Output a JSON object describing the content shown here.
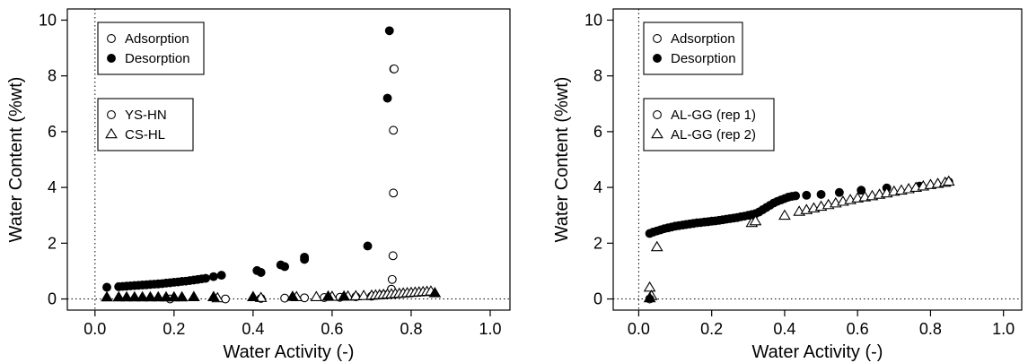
{
  "chart_data": [
    {
      "type": "scatter",
      "xlabel": "Water Activity (-)",
      "ylabel": "Water Content (%wt)",
      "xlim": [
        -0.07,
        1.05
      ],
      "ylim": [
        -0.4,
        10.4
      ],
      "xticks": [
        0.0,
        0.2,
        0.4,
        0.6,
        0.8,
        1.0
      ],
      "xtick_labels": [
        "0.0",
        "0.2",
        "0.4",
        "0.6",
        "0.8",
        "1.0"
      ],
      "yticks": [
        0,
        2,
        4,
        6,
        8,
        10
      ],
      "ytick_labels": [
        "0",
        "2",
        "4",
        "6",
        "8",
        "10"
      ],
      "reference_lines": {
        "x": 0,
        "y": 0,
        "style": "dotted"
      },
      "legend_fill": {
        "placement": "top-left",
        "entries": [
          {
            "label": "Adsorption",
            "marker": "circle",
            "filled": false
          },
          {
            "label": "Desorption",
            "marker": "circle",
            "filled": true
          }
        ]
      },
      "legend_shape": {
        "placement": "upper-left",
        "entries": [
          {
            "label": "YS-HN",
            "marker": "circle",
            "filled": false
          },
          {
            "label": "CS-HL",
            "marker": "triangle",
            "filled": false
          }
        ]
      },
      "series": [
        {
          "marker": "circle",
          "filled": false,
          "x": [
            0.19,
            0.33,
            0.42,
            0.48,
            0.53,
            0.58,
            0.62,
            0.66,
            0.7,
            0.73,
            0.745,
            0.75,
            0.752,
            0.754,
            0.755,
            0.755,
            0.756,
            0.757
          ],
          "y": [
            0.0,
            0.0,
            0.02,
            0.03,
            0.04,
            0.05,
            0.06,
            0.08,
            0.1,
            0.15,
            0.2,
            0.35,
            0.7,
            1.55,
            3.8,
            6.05,
            8.25,
            8.25
          ]
        },
        {
          "marker": "circle",
          "filled": true,
          "x": [
            0.03,
            0.06,
            0.07,
            0.08,
            0.09,
            0.1,
            0.11,
            0.12,
            0.13,
            0.14,
            0.15,
            0.16,
            0.17,
            0.18,
            0.19,
            0.2,
            0.21,
            0.22,
            0.23,
            0.24,
            0.25,
            0.26,
            0.27,
            0.28,
            0.3,
            0.32,
            0.41,
            0.42,
            0.47,
            0.48,
            0.53,
            0.53,
            0.69,
            0.74,
            0.745
          ],
          "y": [
            0.42,
            0.44,
            0.45,
            0.46,
            0.47,
            0.48,
            0.49,
            0.5,
            0.51,
            0.52,
            0.53,
            0.54,
            0.55,
            0.57,
            0.58,
            0.6,
            0.61,
            0.63,
            0.64,
            0.66,
            0.68,
            0.7,
            0.72,
            0.74,
            0.8,
            0.85,
            1.02,
            0.95,
            1.22,
            1.16,
            1.5,
            1.42,
            1.9,
            7.2,
            9.62
          ]
        },
        {
          "marker": "triangle",
          "filled": false,
          "x": [
            0.31,
            0.42,
            0.51,
            0.56,
            0.6,
            0.64,
            0.66,
            0.68,
            0.7,
            0.71,
            0.72,
            0.73,
            0.74,
            0.75,
            0.76,
            0.77,
            0.78,
            0.79,
            0.8,
            0.81,
            0.82,
            0.83,
            0.84,
            0.85
          ],
          "y": [
            0.02,
            0.03,
            0.06,
            0.06,
            0.07,
            0.08,
            0.09,
            0.1,
            0.11,
            0.12,
            0.13,
            0.14,
            0.15,
            0.16,
            0.17,
            0.18,
            0.19,
            0.2,
            0.21,
            0.22,
            0.23,
            0.24,
            0.25,
            0.26
          ]
        },
        {
          "marker": "triangle",
          "filled": true,
          "x": [
            0.03,
            0.06,
            0.08,
            0.1,
            0.12,
            0.14,
            0.16,
            0.18,
            0.2,
            0.22,
            0.25,
            0.3,
            0.4,
            0.5,
            0.59,
            0.63,
            0.86
          ],
          "y": [
            0.05,
            0.05,
            0.05,
            0.05,
            0.05,
            0.05,
            0.05,
            0.05,
            0.05,
            0.05,
            0.06,
            0.06,
            0.06,
            0.07,
            0.08,
            0.08,
            0.2
          ]
        }
      ]
    },
    {
      "type": "scatter",
      "xlabel": "Water Activity (-)",
      "ylabel": "Water Content (%wt)",
      "xlim": [
        -0.07,
        1.05
      ],
      "ylim": [
        -0.4,
        10.4
      ],
      "xticks": [
        0.0,
        0.2,
        0.4,
        0.6,
        0.8,
        1.0
      ],
      "xtick_labels": [
        "0.0",
        "0.2",
        "0.4",
        "0.6",
        "0.8",
        "1.0"
      ],
      "yticks": [
        0,
        2,
        4,
        6,
        8,
        10
      ],
      "ytick_labels": [
        "0",
        "2",
        "4",
        "6",
        "8",
        "10"
      ],
      "reference_lines": {
        "x": 0,
        "y": 0,
        "style": "dotted"
      },
      "legend_fill": {
        "placement": "top-left",
        "entries": [
          {
            "label": "Adsorption",
            "marker": "circle",
            "filled": false
          },
          {
            "label": "Desorption",
            "marker": "circle",
            "filled": true
          }
        ]
      },
      "legend_shape": {
        "placement": "upper-left",
        "entries": [
          {
            "label": "AL-GG (rep 1)",
            "marker": "circle",
            "filled": false
          },
          {
            "label": "AL-GG (rep 2)",
            "marker": "triangle",
            "filled": false
          }
        ]
      },
      "series": [
        {
          "marker": "circle",
          "filled": true,
          "x": [
            0.03,
            0.04,
            0.05,
            0.06,
            0.07,
            0.08,
            0.09,
            0.1,
            0.11,
            0.12,
            0.13,
            0.14,
            0.15,
            0.16,
            0.17,
            0.18,
            0.19,
            0.2,
            0.21,
            0.22,
            0.23,
            0.24,
            0.25,
            0.26,
            0.27,
            0.28,
            0.29,
            0.3,
            0.31,
            0.32,
            0.33,
            0.34,
            0.35,
            0.36,
            0.37,
            0.38,
            0.39,
            0.4,
            0.41,
            0.42,
            0.43,
            0.46,
            0.5,
            0.55,
            0.61,
            0.68,
            0.77,
            0.85
          ],
          "y": [
            2.35,
            2.4,
            2.44,
            2.48,
            2.52,
            2.55,
            2.58,
            2.61,
            2.63,
            2.65,
            2.67,
            2.69,
            2.71,
            2.73,
            2.74,
            2.76,
            2.77,
            2.79,
            2.8,
            2.82,
            2.84,
            2.86,
            2.88,
            2.9,
            2.92,
            2.95,
            2.97,
            3.0,
            3.03,
            3.06,
            3.12,
            3.2,
            3.28,
            3.36,
            3.44,
            3.5,
            3.55,
            3.6,
            3.65,
            3.68,
            3.7,
            3.72,
            3.75,
            3.82,
            3.9,
            3.98,
            4.05,
            4.2
          ]
        },
        {
          "marker": "triangle",
          "filled": false,
          "x": [
            0.03,
            0.035,
            0.05,
            0.31,
            0.32,
            0.4,
            0.44,
            0.46,
            0.48,
            0.5,
            0.52,
            0.54,
            0.56,
            0.58,
            0.6,
            0.62,
            0.64,
            0.66,
            0.68,
            0.7,
            0.72,
            0.74,
            0.76,
            0.78,
            0.8,
            0.82,
            0.84,
            0.85
          ],
          "y": [
            0.4,
            0.1,
            1.85,
            2.72,
            2.78,
            2.98,
            3.12,
            3.18,
            3.24,
            3.3,
            3.36,
            3.42,
            3.48,
            3.54,
            3.6,
            3.64,
            3.68,
            3.73,
            3.78,
            3.84,
            3.88,
            3.93,
            3.98,
            4.03,
            4.08,
            4.12,
            4.16,
            4.2
          ]
        },
        {
          "marker": "circle",
          "filled": false,
          "x": [
            0.03
          ],
          "y": [
            0.0
          ]
        },
        {
          "marker": "triangle",
          "filled": true,
          "x": [
            0.03
          ],
          "y": [
            0.02
          ]
        }
      ]
    }
  ]
}
